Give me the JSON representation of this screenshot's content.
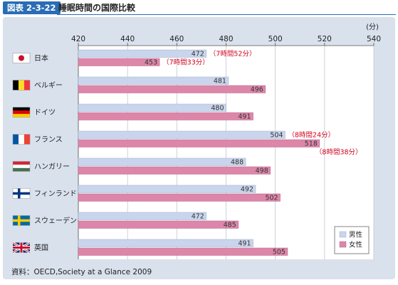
{
  "header": {
    "figure_number": "図表 2-3-22",
    "title": "睡眠時間の国際比較"
  },
  "source": "資料：OECD,Society at a Glance 2009",
  "colors": {
    "accent": "#2a6db5",
    "male": "#c9d5ec",
    "female": "#dc87aa",
    "annotation": "#d0021b",
    "panel": "#d9e1ec"
  },
  "chart_data": {
    "type": "bar",
    "orientation": "horizontal",
    "title": "睡眠時間の国際比較",
    "unit_label": "(分)",
    "xlim": [
      420,
      540
    ],
    "ticks": [
      420,
      440,
      460,
      480,
      500,
      520,
      540
    ],
    "categories": [
      {
        "name": "日本",
        "flag": "japan-flag-icon"
      },
      {
        "name": "ベルギー",
        "flag": "belgium-flag-icon"
      },
      {
        "name": "ドイツ",
        "flag": "germany-flag-icon"
      },
      {
        "name": "フランス",
        "flag": "france-flag-icon"
      },
      {
        "name": "ハンガリー",
        "flag": "hungary-flag-icon"
      },
      {
        "name": "フィンランド",
        "flag": "finland-flag-icon"
      },
      {
        "name": "スウェーデン",
        "flag": "sweden-flag-icon"
      },
      {
        "name": "英国",
        "flag": "uk-flag-icon"
      }
    ],
    "series": [
      {
        "name": "男性",
        "values": [
          472,
          481,
          480,
          504,
          488,
          492,
          472,
          491
        ]
      },
      {
        "name": "女性",
        "values": [
          453,
          496,
          491,
          518,
          498,
          502,
          485,
          505
        ]
      }
    ],
    "annotations": [
      {
        "category": 0,
        "series": 0,
        "text": "（7時間52分）"
      },
      {
        "category": 0,
        "series": 1,
        "text": "（7時間33分）"
      },
      {
        "category": 3,
        "series": 0,
        "text": "（8時間24分）"
      },
      {
        "category": 3,
        "series": 1,
        "text": "（8時間38分）"
      }
    ],
    "legend": {
      "position": "bottom-right"
    },
    "grid": true
  }
}
